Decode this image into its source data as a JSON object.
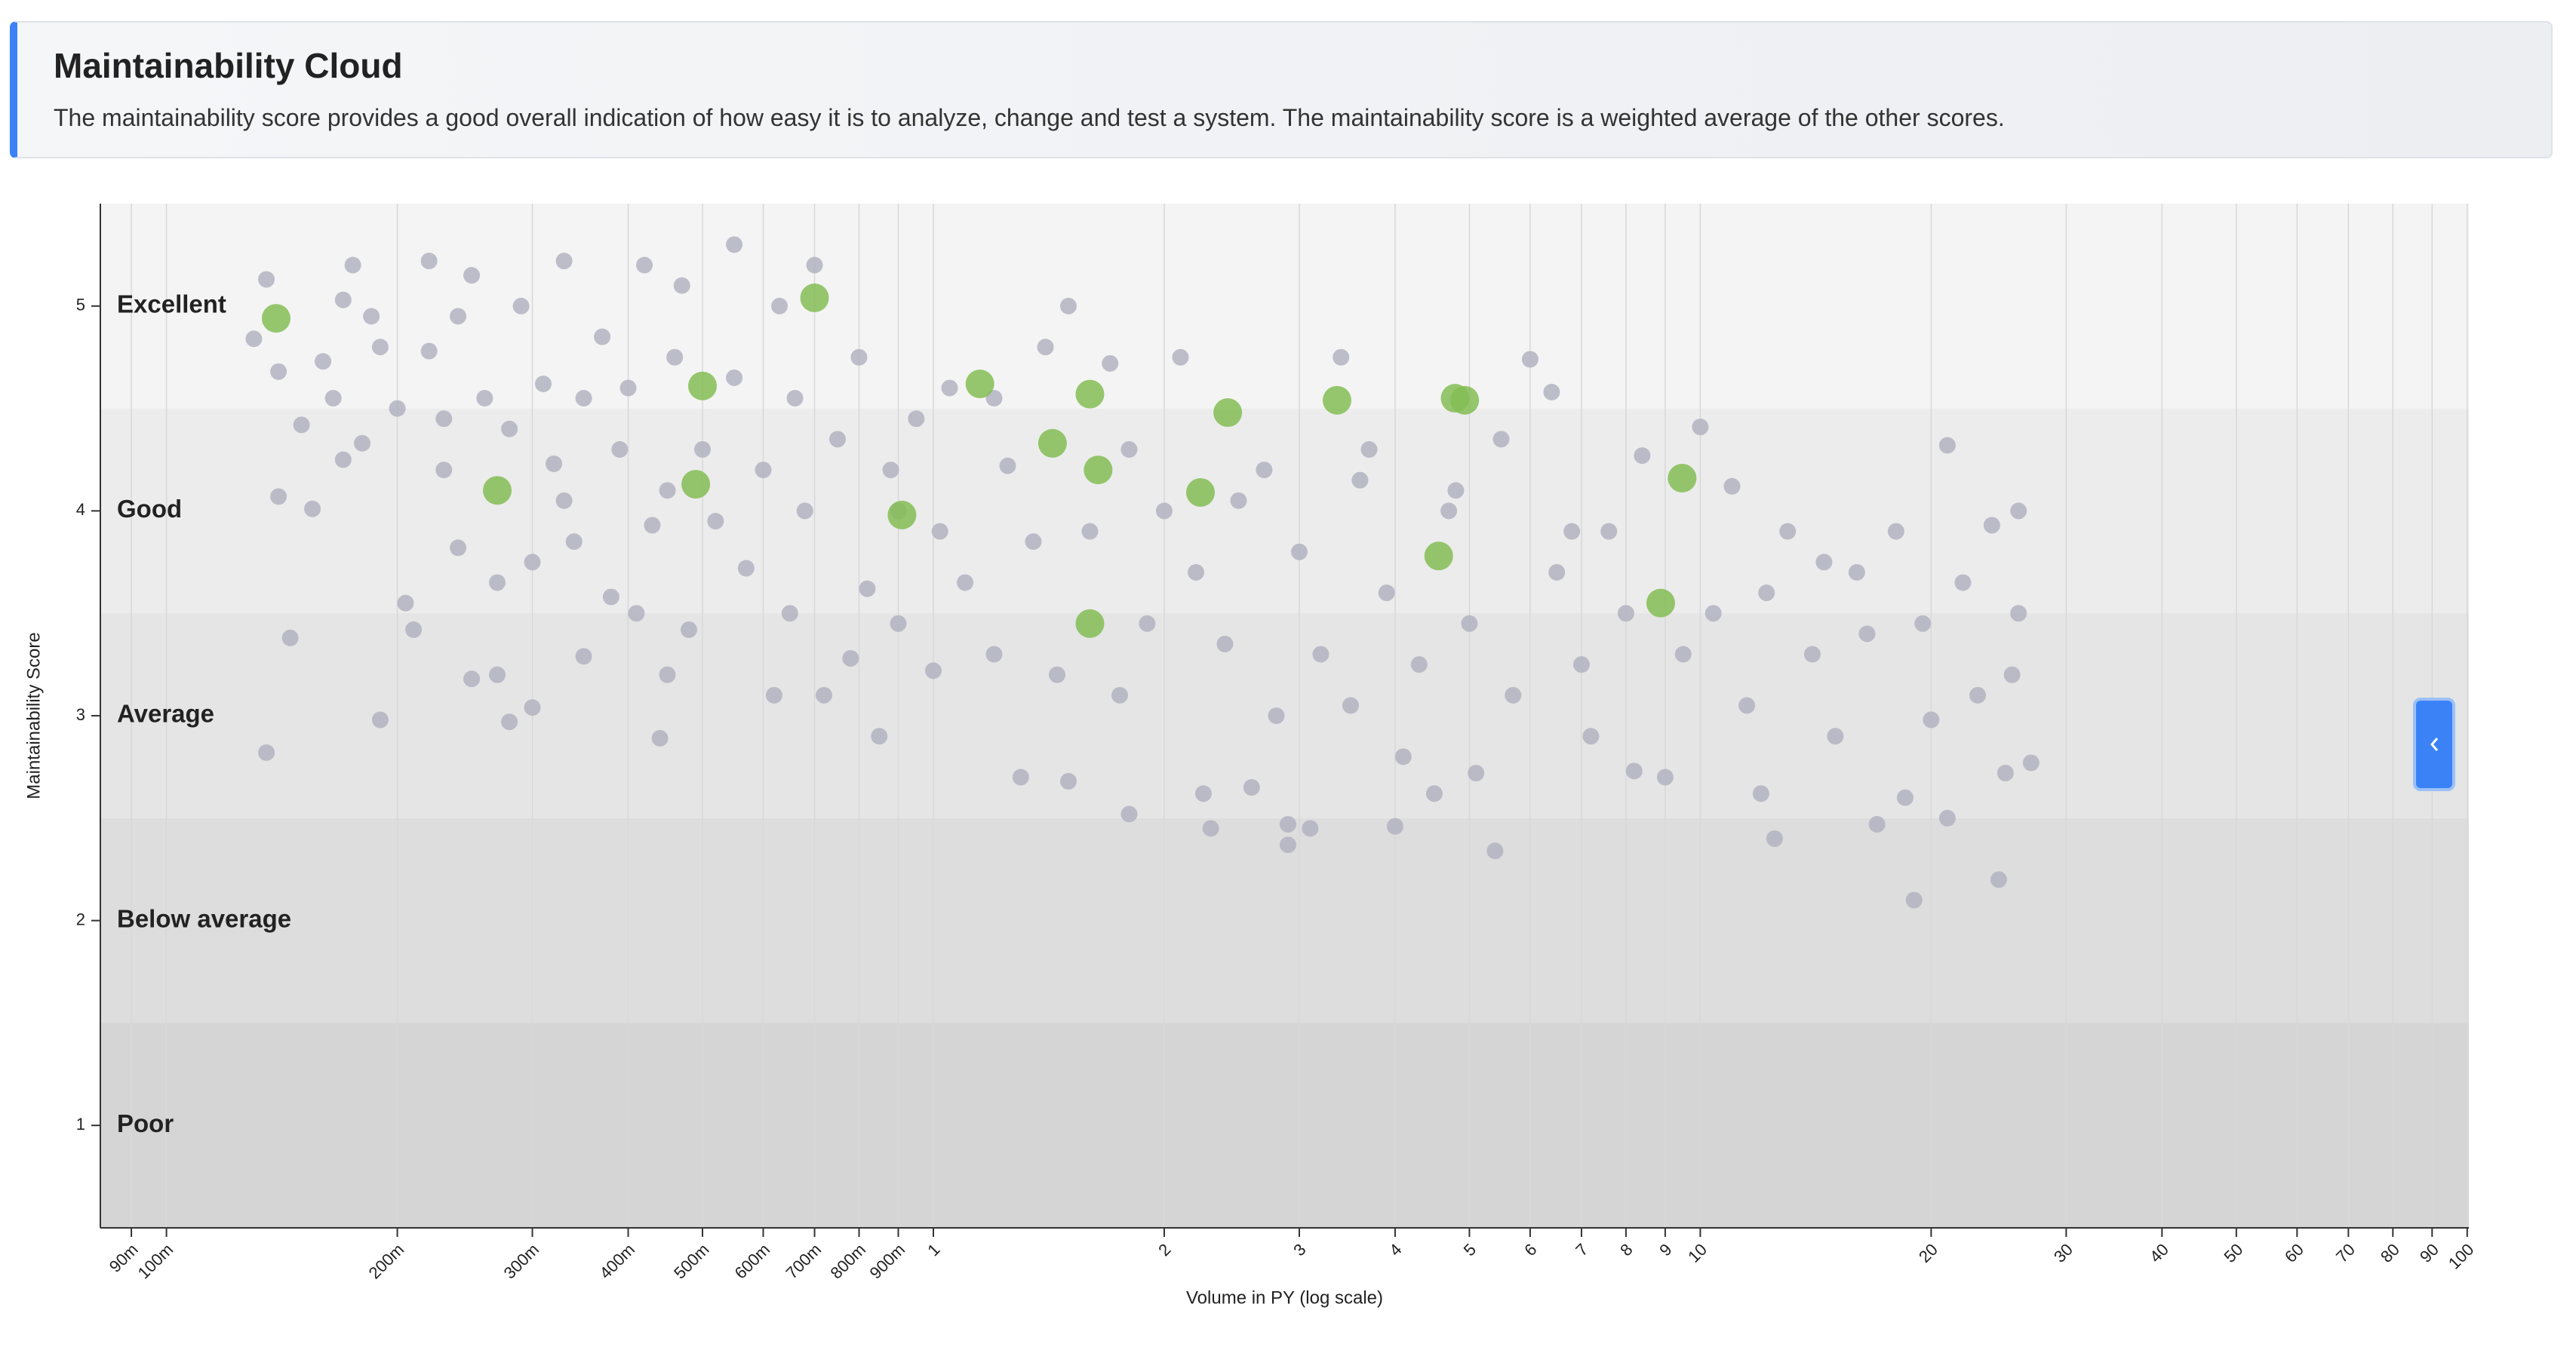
{
  "header": {
    "title": "Maintainability Cloud",
    "description": "The maintainability score provides a good overall indication of how easy it is to analyze, change and test a system. The maintainability score is a weighted average of the other scores."
  },
  "chart_data": {
    "type": "scatter",
    "x_label": "Volume in PY (log scale)",
    "y_label": "Maintainability Score",
    "xscale": "log",
    "grid": true,
    "xlim": [
      0.082,
      100.5
    ],
    "ylim": [
      0.5,
      5.5
    ],
    "xticks": [
      {
        "value": 0.09,
        "label": "90m"
      },
      {
        "value": 0.1,
        "label": "100m"
      },
      {
        "value": 0.2,
        "label": "200m"
      },
      {
        "value": 0.3,
        "label": "300m"
      },
      {
        "value": 0.4,
        "label": "400m"
      },
      {
        "value": 0.5,
        "label": "500m"
      },
      {
        "value": 0.6,
        "label": "600m"
      },
      {
        "value": 0.7,
        "label": "700m"
      },
      {
        "value": 0.8,
        "label": "800m"
      },
      {
        "value": 0.9,
        "label": "900m"
      },
      1,
      2,
      3,
      4,
      5,
      6,
      7,
      8,
      9,
      10,
      20,
      30,
      40,
      50,
      60,
      70,
      80,
      90,
      100
    ],
    "yticks": [
      1,
      2,
      3,
      4,
      5
    ],
    "bands": [
      {
        "label": "Excellent",
        "range": [
          4.5,
          5.5
        ],
        "color": "#f4f4f4"
      },
      {
        "label": "Good",
        "range": [
          3.5,
          4.5
        ],
        "color": "#ececec"
      },
      {
        "label": "Average",
        "range": [
          2.5,
          3.5
        ],
        "color": "#e5e5e5"
      },
      {
        "label": "Below average",
        "range": [
          1.5,
          2.5
        ],
        "color": "#dddddd"
      },
      {
        "label": "Poor",
        "range": [
          0.5,
          1.5
        ],
        "color": "#d5d5d5"
      }
    ],
    "series": [
      {
        "color": "#b3b3c2",
        "radius": 11,
        "x": [
          0.13,
          0.135,
          0.14,
          0.14,
          0.145,
          0.135,
          0.15,
          0.155,
          0.16,
          0.165,
          0.17,
          0.17,
          0.175,
          0.18,
          0.185,
          0.19,
          0.19,
          0.2,
          0.205,
          0.21,
          0.22,
          0.22,
          0.23,
          0.24,
          0.24,
          0.25,
          0.25,
          0.26,
          0.27,
          0.27,
          0.28,
          0.28,
          0.29,
          0.3,
          0.3,
          0.31,
          0.32,
          0.33,
          0.34,
          0.35,
          0.35,
          0.37,
          0.38,
          0.39,
          0.4,
          0.41,
          0.42,
          0.43,
          0.44,
          0.45,
          0.46,
          0.47,
          0.48,
          0.5,
          0.52,
          0.55,
          0.55,
          0.57,
          0.6,
          0.62,
          0.63,
          0.65,
          0.68,
          0.7,
          0.72,
          0.75,
          0.78,
          0.8,
          0.82,
          0.85,
          0.88,
          0.9,
          0.95,
          1.0,
          1.02,
          1.05,
          1.1,
          1.2,
          1.25,
          1.3,
          1.35,
          1.4,
          1.45,
          1.5,
          1.5,
          1.6,
          1.7,
          1.75,
          1.8,
          1.9,
          2.0,
          2.1,
          2.2,
          2.25,
          2.3,
          2.4,
          2.6,
          2.7,
          2.8,
          2.9,
          2.9,
          3.0,
          3.1,
          3.2,
          3.4,
          3.5,
          3.7,
          3.9,
          4.0,
          4.1,
          4.3,
          4.5,
          4.7,
          5.0,
          5.1,
          5.4,
          5.7,
          6.0,
          6.4,
          6.5,
          7.0,
          7.2,
          7.6,
          8.2,
          8.4,
          9.0,
          9.5,
          10.0,
          10.4,
          11.0,
          11.5,
          12.0,
          12.5,
          13.0,
          14.0,
          15.0,
          16.0,
          17.0,
          18.0,
          18.5,
          19.0,
          19.5,
          20.0,
          21.0,
          21.0,
          22.0,
          23.0,
          24.0,
          24.5,
          25.0,
          26.0,
          26.0,
          27.0,
          25.5,
          16.5,
          14.5,
          12.2,
          8.0,
          6.8,
          5.5,
          4.8,
          3.6,
          2.5,
          1.8,
          1.2,
          0.9,
          0.66,
          0.45,
          0.33,
          0.23
        ],
        "values": [
          4.84,
          5.13,
          4.68,
          4.07,
          3.38,
          2.82,
          4.42,
          4.01,
          4.73,
          4.55,
          4.25,
          5.03,
          5.2,
          4.33,
          4.95,
          4.8,
          2.98,
          4.5,
          3.55,
          3.42,
          4.78,
          5.22,
          4.2,
          3.82,
          4.95,
          5.15,
          3.18,
          4.55,
          3.2,
          3.65,
          4.4,
          2.97,
          5.0,
          3.75,
          3.04,
          4.62,
          4.23,
          5.22,
          3.85,
          4.55,
          3.29,
          4.85,
          3.58,
          4.3,
          4.6,
          3.5,
          5.2,
          3.93,
          2.89,
          3.2,
          4.75,
          5.1,
          3.42,
          4.3,
          3.95,
          5.3,
          4.65,
          3.72,
          4.2,
          3.1,
          5.0,
          3.5,
          4.0,
          5.2,
          3.1,
          4.35,
          3.28,
          4.75,
          3.62,
          2.9,
          4.2,
          3.45,
          4.45,
          3.22,
          3.9,
          4.6,
          3.65,
          3.3,
          4.22,
          2.7,
          3.85,
          4.8,
          3.2,
          5.0,
          2.68,
          3.9,
          4.72,
          3.1,
          2.52,
          3.45,
          4.0,
          4.75,
          3.7,
          2.62,
          2.45,
          3.35,
          2.65,
          4.2,
          3.0,
          2.47,
          2.37,
          3.8,
          2.45,
          3.3,
          4.75,
          3.05,
          4.3,
          3.6,
          2.46,
          2.8,
          3.25,
          2.62,
          4.0,
          3.45,
          2.72,
          2.34,
          3.1,
          4.74,
          4.58,
          3.7,
          3.25,
          2.9,
          3.9,
          2.73,
          4.27,
          2.7,
          3.3,
          4.41,
          3.5,
          4.12,
          3.05,
          2.62,
          2.4,
          3.9,
          3.3,
          2.9,
          3.7,
          2.47,
          3.9,
          2.6,
          2.1,
          3.45,
          2.98,
          4.32,
          2.5,
          3.65,
          3.1,
          3.93,
          2.2,
          2.72,
          4.0,
          3.5,
          2.77,
          3.2,
          3.4,
          3.75,
          3.6,
          3.5,
          3.9,
          4.35,
          4.1,
          4.15,
          4.05,
          4.3,
          4.55,
          4.0,
          4.55,
          4.1,
          4.05,
          4.45
        ]
      },
      {
        "color": "#84bd55",
        "radius": 19,
        "x": [
          0.139,
          0.27,
          0.5,
          0.49,
          0.7,
          0.91,
          1.15,
          1.43,
          1.6,
          1.64,
          1.6,
          2.23,
          2.42,
          3.36,
          4.79,
          4.93,
          4.56,
          9.47,
          8.88
        ],
        "values": [
          4.94,
          4.1,
          4.61,
          4.13,
          5.04,
          3.98,
          4.62,
          4.33,
          4.57,
          4.2,
          3.45,
          4.09,
          4.48,
          4.54,
          4.55,
          4.54,
          3.78,
          4.16,
          3.55
        ]
      }
    ]
  }
}
